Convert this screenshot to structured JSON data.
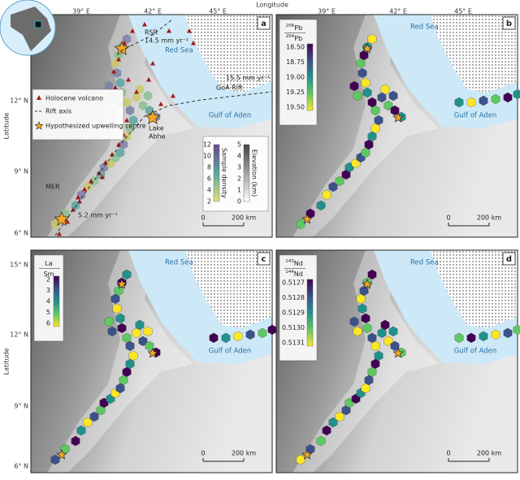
{
  "axes": {
    "top_title": "Longitude",
    "left_title": "Latitude",
    "lon_ticks": [
      "39° E",
      "42° E",
      "45° E"
    ],
    "lat_ticks_top": [
      "12° N",
      "9° N",
      "6° N"
    ],
    "lat_ticks_bottom": [
      "15° N",
      "12° N",
      "9° N",
      "6° N"
    ]
  },
  "panels": [
    {
      "label": "a",
      "red_sea": "Red Sea",
      "gulf": "Gulf of Aden",
      "annotations": {
        "rsr": "RSR",
        "rsr_rate": "14.5 mm yr⁻¹",
        "goa_rate": "15.5 mm yr⁻¹",
        "goa": "GoA Rift",
        "lake": "Lake",
        "abhe": "Abhe",
        "mer": "MER",
        "mer_rate": "5.2 mm yr⁻¹"
      },
      "legend": [
        "Holocene volcano",
        "Rift axis",
        "Hypothesized upwelling centre"
      ],
      "colorbars": [
        {
          "title": "Sample density",
          "ticks": [
            "12",
            "10",
            "8",
            "6",
            "4",
            "2"
          ]
        },
        {
          "title": "Elevation (km)",
          "ticks": [
            "5",
            "4",
            "3",
            "2",
            "1",
            "0"
          ]
        }
      ],
      "scale": [
        "0",
        "200 km"
      ]
    },
    {
      "label": "b",
      "red_sea": "Red Sea",
      "gulf": "Gulf of Aden",
      "colorbar": {
        "num_mass": "206",
        "num_el": "Pb",
        "den_mass": "204",
        "den_el": "Pb",
        "ticks": [
          "18.50",
          "18.75",
          "19.00",
          "19.25",
          "19.50"
        ]
      },
      "scale": [
        "0",
        "200 km"
      ]
    },
    {
      "label": "c",
      "red_sea": "Red Sea",
      "gulf": "Gulf of Aden",
      "colorbar": {
        "num_el": "La",
        "den_el": "Sm",
        "ticks": [
          "2",
          "3",
          "4",
          "5",
          "6"
        ]
      },
      "scale": [
        "0",
        "200 km"
      ]
    },
    {
      "label": "d",
      "red_sea": "Red Sea",
      "gulf": "Gulf of Aden",
      "colorbar": {
        "num_mass": "143",
        "num_el": "Nd",
        "den_mass": "144",
        "den_el": "Nd",
        "ticks": [
          "0.5127",
          "0.5128",
          "0.5129",
          "0.5130",
          "0.5131"
        ]
      },
      "scale": [
        "0",
        "200 km"
      ]
    }
  ]
}
